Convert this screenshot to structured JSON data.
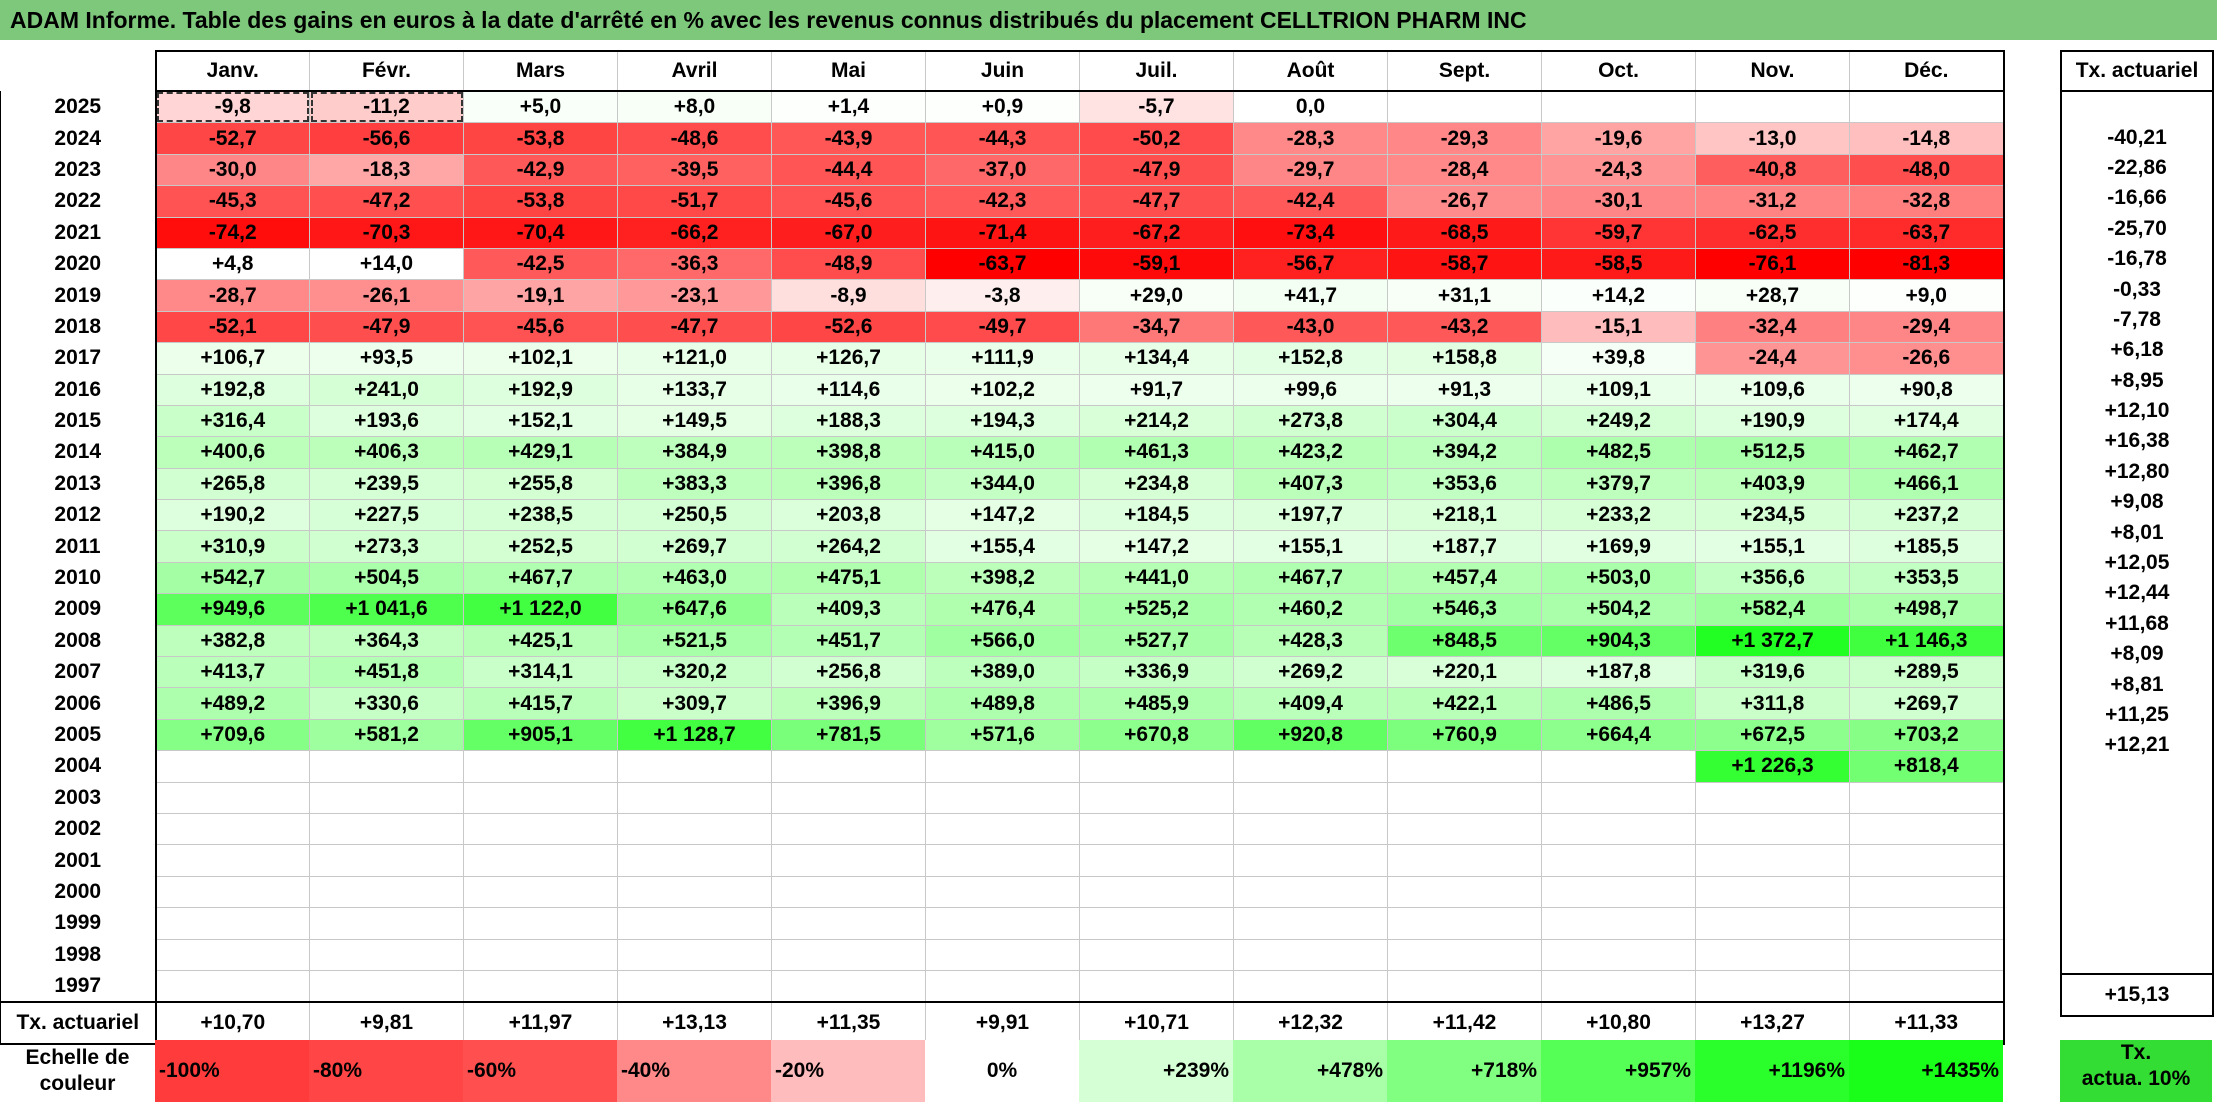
{
  "title": "ADAM Informe. Table des gains en euros à la date d'arrêté en % avec les revenus connus distribués du placement CELLTRION PHARM INC",
  "months": [
    "Janv.",
    "Févr.",
    "Mars",
    "Avril",
    "Mai",
    "Juin",
    "Juil.",
    "Août",
    "Sept.",
    "Oct.",
    "Nov.",
    "Déc."
  ],
  "side_header": "Tx. actuariel",
  "rows": [
    {
      "year": "2025",
      "values": [
        "-9,8",
        "-11,2",
        "+5,0",
        "+8,0",
        "+1,4",
        "+0,9",
        "-5,7",
        "0,0",
        "",
        "",
        "",
        ""
      ],
      "colors": [
        "#ffd5d5",
        "#ffcccc",
        "#f9fff9",
        "#f7fff7",
        "#fcfffc",
        "#fdfffd",
        "#ffe3e3",
        "#ffffff",
        "#ffffff",
        "#ffffff",
        "#ffffff",
        "#ffffff"
      ],
      "rate": ""
    },
    {
      "year": "2024",
      "values": [
        "-52,7",
        "-56,6",
        "-53,8",
        "-48,6",
        "-43,9",
        "-44,3",
        "-50,2",
        "-28,3",
        "-29,3",
        "-19,6",
        "-13,0",
        "-14,8"
      ],
      "colors": [
        "#ff4646",
        "#ff3f3f",
        "#ff4444",
        "#ff4d4d",
        "#ff5656",
        "#ff5555",
        "#ff4b4b",
        "#ff8989",
        "#ff8787",
        "#ffa3a3",
        "#ffc5c5",
        "#ffbfbf"
      ],
      "rate": "-40,21"
    },
    {
      "year": "2023",
      "values": [
        "-30,0",
        "-18,3",
        "-42,9",
        "-39,5",
        "-44,4",
        "-37,0",
        "-47,9",
        "-29,7",
        "-28,4",
        "-24,3",
        "-40,8",
        "-48,0"
      ],
      "colors": [
        "#ff8686",
        "#ffa6a6",
        "#ff5858",
        "#ff6161",
        "#ff5555",
        "#ff6868",
        "#ff4e4e",
        "#ff8686",
        "#ff8888",
        "#ff9494",
        "#ff5e5e",
        "#ff4e4e"
      ],
      "rate": "-22,86"
    },
    {
      "year": "2022",
      "values": [
        "-45,3",
        "-47,2",
        "-53,8",
        "-51,7",
        "-45,6",
        "-42,3",
        "-47,7",
        "-42,4",
        "-26,7",
        "-30,1",
        "-31,2",
        "-32,8"
      ],
      "colors": [
        "#ff5353",
        "#ff4f4f",
        "#ff4444",
        "#ff4848",
        "#ff5252",
        "#ff5959",
        "#ff4e4e",
        "#ff5959",
        "#ff8c8c",
        "#ff8686",
        "#ff8383",
        "#ff7f7f"
      ],
      "rate": "-16,66"
    },
    {
      "year": "2021",
      "values": [
        "-74,2",
        "-70,3",
        "-70,4",
        "-66,2",
        "-67,0",
        "-71,4",
        "-67,2",
        "-73,4",
        "-68,5",
        "-59,7",
        "-62,5",
        "-63,7"
      ],
      "colors": [
        "#ff0d0d",
        "#ff1616",
        "#ff1616",
        "#ff2020",
        "#ff1e1e",
        "#ff1414",
        "#ff1e1e",
        "#ff0f0f",
        "#ff1a1a",
        "#ff3535",
        "#ff2e2e",
        "#ff2b2b"
      ],
      "rate": "-25,70"
    },
    {
      "year": "2020",
      "values": [
        "+4,8",
        "+14,0",
        "-42,5",
        "-36,3",
        "-48,9",
        "-63,7",
        "-59,1",
        "-56,7",
        "-58,7",
        "-58,5",
        "-76,1",
        "-81,3"
      ],
      "colors": [
        "#ffffff",
        "#ffffff",
        "#ff5959",
        "#ff6969",
        "#ff4d4d",
        "#ff0000",
        "#ff0a0a",
        "#ff2020",
        "#ff1414",
        "#ff1a1a",
        "#ff0000",
        "#ff0000"
      ],
      "rate": "-16,78"
    },
    {
      "year": "2019",
      "values": [
        "-28,7",
        "-26,1",
        "-19,1",
        "-23,1",
        "-8,9",
        "-3,8",
        "+29,0",
        "+41,7",
        "+31,1",
        "+14,2",
        "+28,7",
        "+9,0"
      ],
      "colors": [
        "#ff8888",
        "#ff8f8f",
        "#ffa4a4",
        "#ff9898",
        "#ffdede",
        "#ffeeee",
        "#f7fff7",
        "#f4fff4",
        "#f7fff7",
        "#fbfffb",
        "#f7fff7",
        "#fcfffc"
      ],
      "rate": "-0,33"
    },
    {
      "year": "2018",
      "values": [
        "-52,1",
        "-47,9",
        "-45,6",
        "-47,7",
        "-52,6",
        "-49,7",
        "-34,7",
        "-43,0",
        "-43,2",
        "-15,1",
        "-32,4",
        "-29,4"
      ],
      "colors": [
        "#ff4747",
        "#ff4e4e",
        "#ff5252",
        "#ff4e4e",
        "#ff4646",
        "#ff4b4b",
        "#ff7878",
        "#ff5858",
        "#ff5858",
        "#ffbcbc",
        "#ff8080",
        "#ff8686"
      ],
      "rate": "-7,78"
    },
    {
      "year": "2017",
      "values": [
        "+106,7",
        "+93,5",
        "+102,1",
        "+121,0",
        "+126,7",
        "+111,9",
        "+134,4",
        "+152,8",
        "+158,8",
        "+39,8",
        "-24,4",
        "-26,6"
      ],
      "colors": [
        "#ebffeb",
        "#edffed",
        "#ebffeb",
        "#e8ffe8",
        "#e7ffe7",
        "#e9ffe9",
        "#e6ffe6",
        "#e3ffe3",
        "#e2ffe2",
        "#f5fff5",
        "#ff9494",
        "#ff8e8e"
      ],
      "rate": "+6,18"
    },
    {
      "year": "2016",
      "values": [
        "+192,8",
        "+241,0",
        "+192,9",
        "+133,7",
        "+114,6",
        "+102,2",
        "+91,7",
        "+99,6",
        "+91,3",
        "+109,1",
        "+109,6",
        "+90,8"
      ],
      "colors": [
        "#ddffdd",
        "#d5ffd5",
        "#ddffdd",
        "#e6ffe6",
        "#e9ffe9",
        "#ebffeb",
        "#edffed",
        "#ecffec",
        "#edffed",
        "#eaffea",
        "#eaffea",
        "#edffed"
      ],
      "rate": "+8,95"
    },
    {
      "year": "2015",
      "values": [
        "+316,4",
        "+193,6",
        "+152,1",
        "+149,5",
        "+188,3",
        "+194,3",
        "+214,2",
        "+273,8",
        "+304,4",
        "+249,2",
        "+190,9",
        "+174,4"
      ],
      "colors": [
        "#c9ffc9",
        "#ddffdd",
        "#e3ffe3",
        "#e4ffe4",
        "#ddffdd",
        "#ddffdd",
        "#d9ffd9",
        "#d0ffd0",
        "#cbffcb",
        "#d4ffd4",
        "#ddffdd",
        "#e0ffe0"
      ],
      "rate": "+12,10"
    },
    {
      "year": "2014",
      "values": [
        "+400,6",
        "+406,3",
        "+429,1",
        "+384,9",
        "+398,8",
        "+415,0",
        "+461,3",
        "+423,2",
        "+394,2",
        "+482,5",
        "+512,5",
        "+462,7"
      ],
      "colors": [
        "#bbffbb",
        "#bbffbb",
        "#b7ffb7",
        "#beffbe",
        "#bbffbb",
        "#b9ffb9",
        "#b1ffb1",
        "#b8ffb8",
        "#bcffbc",
        "#adffad",
        "#a9ffa9",
        "#b1ffb1"
      ],
      "rate": "+16,38"
    },
    {
      "year": "2013",
      "values": [
        "+265,8",
        "+239,5",
        "+255,8",
        "+383,3",
        "+396,8",
        "+344,0",
        "+234,8",
        "+407,3",
        "+353,6",
        "+379,7",
        "+403,9",
        "+466,1"
      ],
      "colors": [
        "#d1ffd1",
        "#d5ffd5",
        "#d3ffd3",
        "#beffbe",
        "#bbffbb",
        "#c4ffc4",
        "#d6ffd6",
        "#bbffbb",
        "#c2ffc2",
        "#beffbe",
        "#bbffbb",
        "#b0ffb0"
      ],
      "rate": "+12,80"
    },
    {
      "year": "2012",
      "values": [
        "+190,2",
        "+227,5",
        "+238,5",
        "+250,5",
        "+203,8",
        "+147,2",
        "+184,5",
        "+197,7",
        "+218,1",
        "+233,2",
        "+234,5",
        "+237,2"
      ],
      "colors": [
        "#ddffdd",
        "#d7ffd7",
        "#d5ffd5",
        "#d4ffd4",
        "#dbffdb",
        "#e4ffe4",
        "#deffde",
        "#dcffdc",
        "#d9ffd9",
        "#d6ffd6",
        "#d6ffd6",
        "#d5ffd5"
      ],
      "rate": "+9,08"
    },
    {
      "year": "2011",
      "values": [
        "+310,9",
        "+273,3",
        "+252,5",
        "+269,7",
        "+264,2",
        "+155,4",
        "+147,2",
        "+155,1",
        "+187,7",
        "+169,9",
        "+155,1",
        "+185,5"
      ],
      "colors": [
        "#caffca",
        "#d0ffd0",
        "#d3ffd3",
        "#d1ffd1",
        "#d1ffd1",
        "#e3ffe3",
        "#e4ffe4",
        "#e3ffe3",
        "#deffde",
        "#e1ffe1",
        "#e3ffe3",
        "#deffde"
      ],
      "rate": "+8,01"
    },
    {
      "year": "2010",
      "values": [
        "+542,7",
        "+504,5",
        "+467,7",
        "+463,0",
        "+475,1",
        "+398,2",
        "+441,0",
        "+467,7",
        "+457,4",
        "+503,0",
        "+356,6",
        "+353,5"
      ],
      "colors": [
        "#a4ffa4",
        "#aaffaa",
        "#b0ffb0",
        "#b1ffb1",
        "#afffaf",
        "#bbffbb",
        "#b4ffb4",
        "#b0ffb0",
        "#b2ffb2",
        "#aaffaa",
        "#c2ffc2",
        "#c2ffc2"
      ],
      "rate": "+12,05"
    },
    {
      "year": "2009",
      "values": [
        "+949,6",
        "+1 041,6",
        "+1 122,0",
        "+647,6",
        "+409,3",
        "+476,4",
        "+525,2",
        "+460,2",
        "+546,3",
        "+504,2",
        "+582,4",
        "+498,7"
      ],
      "colors": [
        "#5cff5c",
        "#4eff4e",
        "#42ff42",
        "#8fff8f",
        "#baffba",
        "#afffaf",
        "#a7ffa7",
        "#b1ffb1",
        "#a3ffa3",
        "#aaffaa",
        "#9dff9d",
        "#abffab"
      ],
      "rate": "+12,44"
    },
    {
      "year": "2008",
      "values": [
        "+382,8",
        "+364,3",
        "+425,1",
        "+521,5",
        "+451,7",
        "+566,0",
        "+527,7",
        "+428,3",
        "+848,5",
        "+904,3",
        "+1 372,7",
        "+1 146,3"
      ],
      "colors": [
        "#beffbe",
        "#c1ffc1",
        "#b7ffb7",
        "#a7ffa7",
        "#b3ffb3",
        "#a0ffa0",
        "#a6ffa6",
        "#b7ffb7",
        "#6eff6e",
        "#64ff64",
        "#22ff22",
        "#3fff3f"
      ],
      "rate": "+11,68"
    },
    {
      "year": "2007",
      "values": [
        "+413,7",
        "+451,8",
        "+314,1",
        "+320,2",
        "+256,8",
        "+389,0",
        "+336,9",
        "+269,2",
        "+220,1",
        "+187,8",
        "+319,6",
        "+289,5"
      ],
      "colors": [
        "#baffba",
        "#b3ffb3",
        "#c9ffc9",
        "#c8ffc8",
        "#d2ffd2",
        "#bdffbd",
        "#c5ffc5",
        "#d0ffd0",
        "#d8ffd8",
        "#deffde",
        "#c8ffc8",
        "#ccffcc"
      ],
      "rate": "+8,09"
    },
    {
      "year": "2006",
      "values": [
        "+489,2",
        "+330,6",
        "+415,7",
        "+309,7",
        "+396,9",
        "+489,8",
        "+485,9",
        "+409,4",
        "+422,1",
        "+486,5",
        "+311,8",
        "+269,7"
      ],
      "colors": [
        "#adffad",
        "#c6ffc6",
        "#b9ffb9",
        "#caffca",
        "#bbffbb",
        "#adffad",
        "#adffad",
        "#baffba",
        "#b8ffb8",
        "#adffad",
        "#caffca",
        "#d0ffd0"
      ],
      "rate": "+8,81"
    },
    {
      "year": "2005",
      "values": [
        "+709,6",
        "+581,2",
        "+905,1",
        "+1 128,7",
        "+781,5",
        "+571,6",
        "+670,8",
        "+920,8",
        "+760,9",
        "+664,4",
        "+672,5",
        "+703,2"
      ],
      "colors": [
        "#86ff86",
        "#9dff9d",
        "#64ff64",
        "#42ff42",
        "#79ff79",
        "#9fff9f",
        "#8cff8c",
        "#62ff62",
        "#7cff7c",
        "#8dff8d",
        "#8cff8c",
        "#87ff87"
      ],
      "rate": "+11,25"
    },
    {
      "year": "2004",
      "values": [
        "",
        "",
        "",
        "",
        "",
        "",
        "",
        "",
        "",
        "",
        "+1 226,3",
        "+818,4"
      ],
      "colors": [
        "#ffffff",
        "#ffffff",
        "#ffffff",
        "#ffffff",
        "#ffffff",
        "#ffffff",
        "#ffffff",
        "#ffffff",
        "#ffffff",
        "#ffffff",
        "#33ff33",
        "#72ff72"
      ],
      "rate": "+12,21"
    },
    {
      "year": "2003",
      "values": [
        "",
        "",
        "",
        "",
        "",
        "",
        "",
        "",
        "",
        "",
        "",
        ""
      ],
      "colors": [
        "#ffffff",
        "#ffffff",
        "#ffffff",
        "#ffffff",
        "#ffffff",
        "#ffffff",
        "#ffffff",
        "#ffffff",
        "#ffffff",
        "#ffffff",
        "#ffffff",
        "#ffffff"
      ],
      "rate": ""
    },
    {
      "year": "2002",
      "values": [
        "",
        "",
        "",
        "",
        "",
        "",
        "",
        "",
        "",
        "",
        "",
        ""
      ],
      "colors": [
        "#ffffff",
        "#ffffff",
        "#ffffff",
        "#ffffff",
        "#ffffff",
        "#ffffff",
        "#ffffff",
        "#ffffff",
        "#ffffff",
        "#ffffff",
        "#ffffff",
        "#ffffff"
      ],
      "rate": ""
    },
    {
      "year": "2001",
      "values": [
        "",
        "",
        "",
        "",
        "",
        "",
        "",
        "",
        "",
        "",
        "",
        ""
      ],
      "colors": [
        "#ffffff",
        "#ffffff",
        "#ffffff",
        "#ffffff",
        "#ffffff",
        "#ffffff",
        "#ffffff",
        "#ffffff",
        "#ffffff",
        "#ffffff",
        "#ffffff",
        "#ffffff"
      ],
      "rate": ""
    },
    {
      "year": "2000",
      "values": [
        "",
        "",
        "",
        "",
        "",
        "",
        "",
        "",
        "",
        "",
        "",
        ""
      ],
      "colors": [
        "#ffffff",
        "#ffffff",
        "#ffffff",
        "#ffffff",
        "#ffffff",
        "#ffffff",
        "#ffffff",
        "#ffffff",
        "#ffffff",
        "#ffffff",
        "#ffffff",
        "#ffffff"
      ],
      "rate": ""
    },
    {
      "year": "1999",
      "values": [
        "",
        "",
        "",
        "",
        "",
        "",
        "",
        "",
        "",
        "",
        "",
        ""
      ],
      "colors": [
        "#ffffff",
        "#ffffff",
        "#ffffff",
        "#ffffff",
        "#ffffff",
        "#ffffff",
        "#ffffff",
        "#ffffff",
        "#ffffff",
        "#ffffff",
        "#ffffff",
        "#ffffff"
      ],
      "rate": ""
    },
    {
      "year": "1998",
      "values": [
        "",
        "",
        "",
        "",
        "",
        "",
        "",
        "",
        "",
        "",
        "",
        ""
      ],
      "colors": [
        "#ffffff",
        "#ffffff",
        "#ffffff",
        "#ffffff",
        "#ffffff",
        "#ffffff",
        "#ffffff",
        "#ffffff",
        "#ffffff",
        "#ffffff",
        "#ffffff",
        "#ffffff"
      ],
      "rate": ""
    },
    {
      "year": "1997",
      "values": [
        "",
        "",
        "",
        "",
        "",
        "",
        "",
        "",
        "",
        "",
        "",
        ""
      ],
      "colors": [
        "#ffffff",
        "#ffffff",
        "#ffffff",
        "#ffffff",
        "#ffffff",
        "#ffffff",
        "#ffffff",
        "#ffffff",
        "#ffffff",
        "#ffffff",
        "#ffffff",
        "#ffffff"
      ],
      "rate": ""
    }
  ],
  "totals": {
    "label": "Tx. actuariel",
    "values": [
      "+10,70",
      "+9,81",
      "+11,97",
      "+13,13",
      "+11,35",
      "+9,91",
      "+10,71",
      "+12,32",
      "+11,42",
      "+10,80",
      "+13,27",
      "+11,33"
    ],
    "overall": "+15,13"
  },
  "scale": {
    "label_line1": "Echelle de",
    "label_line2": "couleur",
    "items": [
      {
        "text": "-100%",
        "color": "#ff3b3b",
        "align": "left"
      },
      {
        "text": "-80%",
        "color": "#ff4545",
        "align": "left"
      },
      {
        "text": "-60%",
        "color": "#ff4f4f",
        "align": "left"
      },
      {
        "text": "-40%",
        "color": "#ff8888",
        "align": "left"
      },
      {
        "text": "-20%",
        "color": "#ffbcbc",
        "align": "left"
      },
      {
        "text": "0%",
        "color": "#ffffff",
        "align": "center"
      },
      {
        "text": "+239%",
        "color": "#d5ffd5",
        "align": "right"
      },
      {
        "text": "+478%",
        "color": "#a8ffa8",
        "align": "right"
      },
      {
        "text": "+718%",
        "color": "#80ff80",
        "align": "right"
      },
      {
        "text": "+957%",
        "color": "#55ff55",
        "align": "right"
      },
      {
        "text": "+1196%",
        "color": "#2bff2b",
        "align": "right"
      },
      {
        "text": "+1435%",
        "color": "#1aff1a",
        "align": "right"
      }
    ],
    "legend_line1": "Tx.",
    "legend_line2": "actua. 10%"
  }
}
